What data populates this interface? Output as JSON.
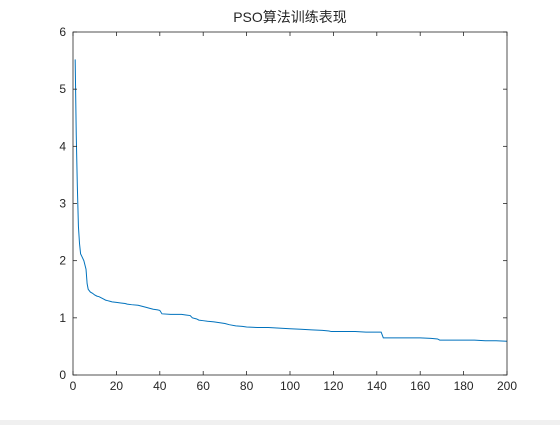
{
  "chart_data": {
    "type": "line",
    "title": "PSO算法训练表现",
    "xlabel": "",
    "ylabel": "",
    "xlim": [
      0,
      200
    ],
    "ylim": [
      0,
      6
    ],
    "xticks": [
      0,
      20,
      40,
      60,
      80,
      100,
      120,
      140,
      160,
      180,
      200
    ],
    "yticks": [
      0,
      1,
      2,
      3,
      4,
      5,
      6
    ],
    "grid": false,
    "legend": "none",
    "series": [
      {
        "color": "#0072bd",
        "x": [
          1,
          1.5,
          2,
          2.5,
          3,
          3.5,
          4,
          5,
          6,
          6.5,
          7,
          8,
          9,
          10,
          11,
          12,
          13,
          14,
          15,
          16,
          17,
          18,
          20,
          22,
          24,
          25,
          27,
          30,
          32,
          34,
          35,
          37,
          39,
          40,
          41,
          45,
          50,
          52,
          54,
          55,
          57,
          58,
          60,
          62,
          65,
          70,
          72,
          75,
          78,
          80,
          85,
          90,
          95,
          100,
          105,
          110,
          115,
          118,
          119,
          125,
          130,
          135,
          140,
          142,
          143,
          145,
          150,
          155,
          160,
          165,
          168,
          169,
          175,
          180,
          185,
          190,
          195,
          200
        ],
        "y": [
          5.52,
          4.2,
          3.3,
          2.6,
          2.3,
          2.12,
          2.08,
          2.0,
          1.85,
          1.6,
          1.5,
          1.45,
          1.43,
          1.4,
          1.38,
          1.37,
          1.35,
          1.33,
          1.31,
          1.3,
          1.29,
          1.28,
          1.27,
          1.26,
          1.25,
          1.24,
          1.23,
          1.22,
          1.2,
          1.18,
          1.17,
          1.15,
          1.14,
          1.13,
          1.07,
          1.06,
          1.06,
          1.05,
          1.04,
          1.0,
          0.98,
          0.96,
          0.95,
          0.94,
          0.93,
          0.9,
          0.88,
          0.86,
          0.85,
          0.84,
          0.83,
          0.83,
          0.82,
          0.81,
          0.8,
          0.79,
          0.78,
          0.77,
          0.76,
          0.76,
          0.76,
          0.75,
          0.75,
          0.75,
          0.65,
          0.65,
          0.65,
          0.65,
          0.65,
          0.64,
          0.63,
          0.61,
          0.61,
          0.61,
          0.61,
          0.6,
          0.6,
          0.59
        ]
      }
    ]
  }
}
